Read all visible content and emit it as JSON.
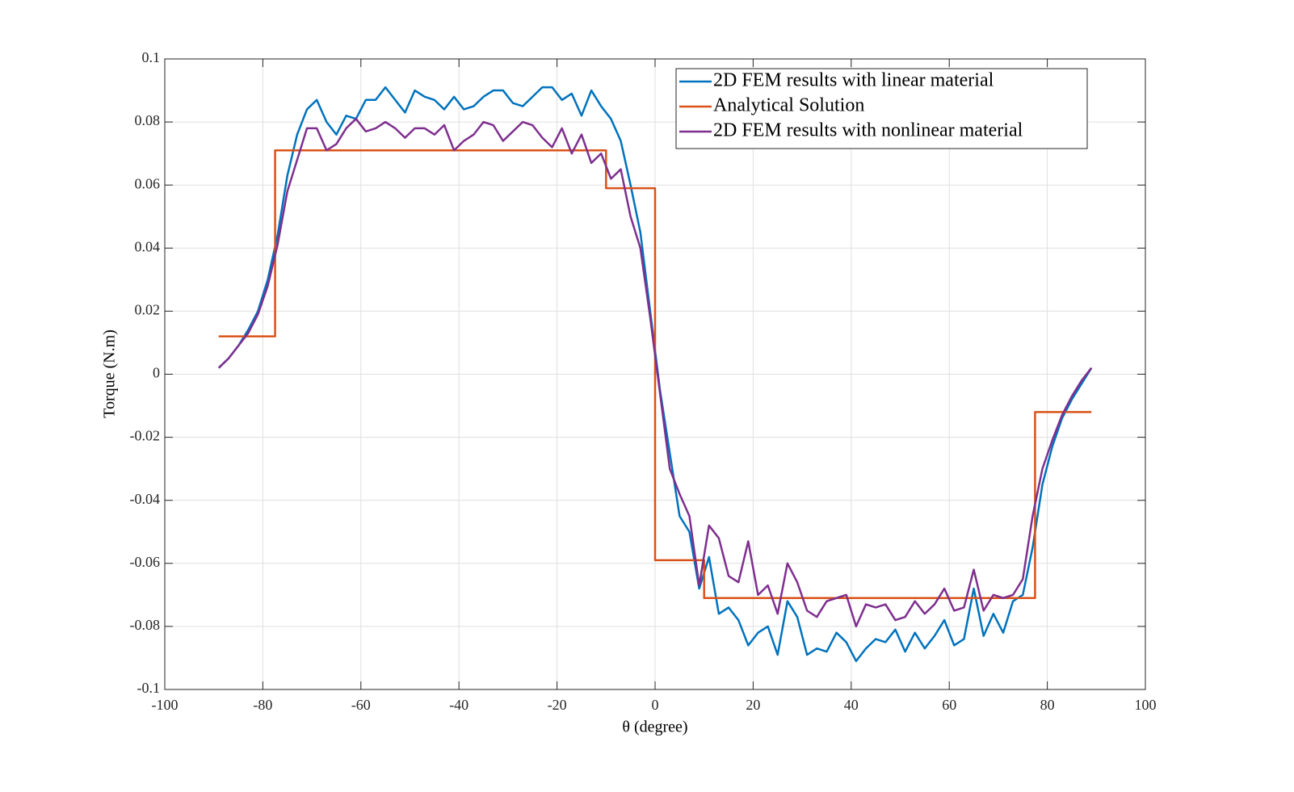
{
  "chart_data": {
    "type": "line",
    "xlabel": "θ (degree)",
    "ylabel": "Torque (N.m)",
    "xlim": [
      -100,
      100
    ],
    "xticks": [
      -100,
      -80,
      -60,
      -40,
      -20,
      0,
      20,
      40,
      60,
      80,
      100
    ],
    "ylim": [
      -0.1,
      0.1
    ],
    "yticks": [
      -0.1,
      -0.08,
      -0.06,
      -0.04,
      -0.02,
      0,
      0.02,
      0.04,
      0.06,
      0.08,
      0.1
    ],
    "grid": true,
    "legend": "northeast",
    "x": [
      -89,
      -87,
      -85,
      -83,
      -81,
      -79,
      -77,
      -75,
      -73,
      -71,
      -69,
      -67,
      -65,
      -63,
      -61,
      -59,
      -57,
      -55,
      -53,
      -51,
      -49,
      -47,
      -45,
      -43,
      -41,
      -39,
      -37,
      -35,
      -33,
      -31,
      -29,
      -27,
      -25,
      -23,
      -21,
      -19,
      -17,
      -15,
      -13,
      -11,
      -9,
      -7,
      -5,
      -3,
      -1,
      1,
      3,
      5,
      7,
      9,
      11,
      13,
      15,
      17,
      19,
      21,
      23,
      25,
      27,
      29,
      31,
      33,
      35,
      37,
      39,
      41,
      43,
      45,
      47,
      49,
      51,
      53,
      55,
      57,
      59,
      61,
      63,
      65,
      67,
      69,
      71,
      73,
      75,
      77,
      79,
      81,
      83,
      85,
      87,
      89
    ],
    "series": [
      {
        "name": "2D FEM results with linear material",
        "color": "#0072BD",
        "values": [
          0.002,
          0.005,
          0.009,
          0.014,
          0.02,
          0.03,
          0.044,
          0.063,
          0.076,
          0.084,
          0.087,
          0.08,
          0.076,
          0.082,
          0.081,
          0.087,
          0.087,
          0.091,
          0.087,
          0.083,
          0.09,
          0.088,
          0.087,
          0.084,
          0.088,
          0.084,
          0.085,
          0.088,
          0.09,
          0.09,
          0.086,
          0.085,
          0.088,
          0.091,
          0.091,
          0.087,
          0.089,
          0.082,
          0.09,
          0.085,
          0.081,
          0.074,
          0.06,
          0.045,
          0.02,
          -0.005,
          -0.025,
          -0.045,
          -0.05,
          -0.068,
          -0.058,
          -0.076,
          -0.074,
          -0.078,
          -0.086,
          -0.082,
          -0.08,
          -0.089,
          -0.072,
          -0.077,
          -0.089,
          -0.087,
          -0.088,
          -0.082,
          -0.085,
          -0.091,
          -0.087,
          -0.084,
          -0.085,
          -0.081,
          -0.088,
          -0.082,
          -0.087,
          -0.083,
          -0.078,
          -0.086,
          -0.084,
          -0.068,
          -0.083,
          -0.076,
          -0.082,
          -0.072,
          -0.07,
          -0.055,
          -0.035,
          -0.023,
          -0.014,
          -0.008,
          -0.003,
          0.002
        ]
      },
      {
        "name": "Analytical Solution",
        "color": "#D95319",
        "x": [
          -89,
          -77.5,
          -77.5,
          -10,
          -10,
          0,
          0,
          10,
          10,
          77.5,
          77.5,
          89
        ],
        "values": [
          0.012,
          0.012,
          0.071,
          0.071,
          0.059,
          0.059,
          -0.059,
          -0.059,
          -0.071,
          -0.071,
          -0.012,
          -0.012
        ]
      },
      {
        "name": "2D FEM results with nonlinear material",
        "color": "#7E2F8E",
        "values": [
          0.002,
          0.005,
          0.009,
          0.013,
          0.019,
          0.028,
          0.041,
          0.058,
          0.068,
          0.078,
          0.078,
          0.071,
          0.073,
          0.078,
          0.081,
          0.077,
          0.078,
          0.08,
          0.078,
          0.075,
          0.078,
          0.078,
          0.076,
          0.079,
          0.071,
          0.074,
          0.076,
          0.08,
          0.079,
          0.074,
          0.077,
          0.08,
          0.079,
          0.075,
          0.072,
          0.078,
          0.07,
          0.076,
          0.067,
          0.07,
          0.062,
          0.065,
          0.05,
          0.04,
          0.018,
          -0.006,
          -0.03,
          -0.038,
          -0.045,
          -0.067,
          -0.048,
          -0.052,
          -0.064,
          -0.066,
          -0.053,
          -0.07,
          -0.067,
          -0.076,
          -0.06,
          -0.066,
          -0.075,
          -0.077,
          -0.072,
          -0.071,
          -0.07,
          -0.08,
          -0.073,
          -0.074,
          -0.073,
          -0.078,
          -0.077,
          -0.072,
          -0.076,
          -0.073,
          -0.068,
          -0.075,
          -0.074,
          -0.062,
          -0.075,
          -0.07,
          -0.071,
          -0.07,
          -0.065,
          -0.045,
          -0.03,
          -0.021,
          -0.013,
          -0.007,
          -0.002,
          0.002
        ]
      }
    ]
  }
}
